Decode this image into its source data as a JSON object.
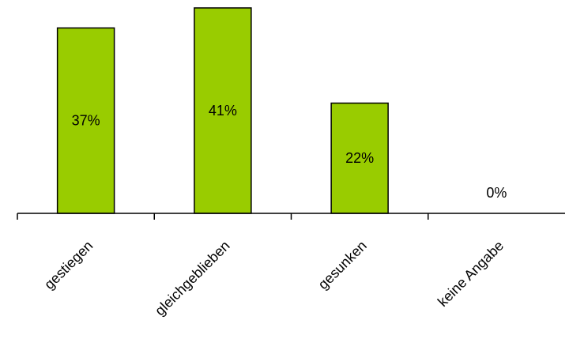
{
  "chart_data": {
    "type": "bar",
    "categories": [
      "gestiegen",
      "gleichgeblieben",
      "gesunken",
      "keine Angabe"
    ],
    "values": [
      37,
      41,
      22,
      0
    ],
    "data_labels": [
      "37%",
      "41%",
      "22%",
      "0%"
    ],
    "title": "",
    "xlabel": "",
    "ylabel": "",
    "ylim": [
      0,
      41
    ],
    "grid": false,
    "legend": "none",
    "bar_color": "#99cc00",
    "bar_edge_color": "#000000"
  }
}
